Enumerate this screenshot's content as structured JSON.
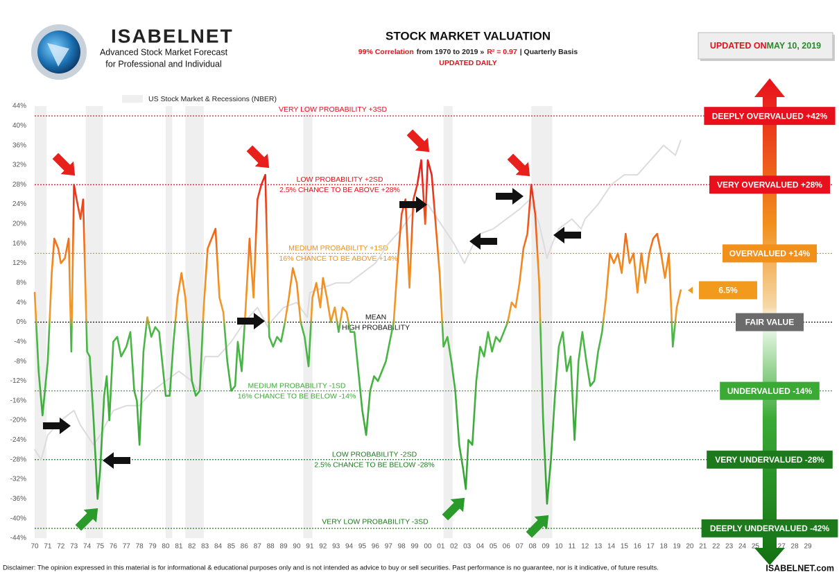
{
  "header": {
    "brand": "ISABELNET",
    "tagline_1": "Advanced Stock Market Forecast",
    "tagline_2": "for Professional and Individual",
    "updated_prefix": "UPDATED ON",
    "updated_date": "MAY 10, 2019"
  },
  "footer": {
    "disclaimer": "Disclaimer: The opinion expressed in this material is for informational & educational purposes only and is not intended as advice to buy or sell securities. Past performance is no guarantee, nor is it indicative, of future results.",
    "site": "ISABELNET.com"
  },
  "chart_data": {
    "type": "line",
    "title": "STOCK MARKET VALUATION",
    "subtitle": [
      {
        "text": "99% Correlation",
        "color": "#e8101c"
      },
      {
        "text": "from 1970 to 2019 »",
        "color": "#222222"
      },
      {
        "text": "R² = 0.97",
        "color": "#e8101c"
      },
      {
        "text": "| Quarterly Basis",
        "color": "#222222"
      }
    ],
    "note": "UPDATED DAILY",
    "legend_label": "US Stock Market & Recessions (NBER)",
    "xlim": [
      1970,
      2029
    ],
    "ylim": [
      -44,
      44
    ],
    "xticks": [
      {
        "value": 1970,
        "label": "70"
      },
      {
        "value": 1971,
        "label": "71"
      },
      {
        "value": 1972,
        "label": "72"
      },
      {
        "value": 1973,
        "label": "73"
      },
      {
        "value": 1974,
        "label": "74"
      },
      {
        "value": 1975,
        "label": "75"
      },
      {
        "value": 1976,
        "label": "76"
      },
      {
        "value": 1977,
        "label": "77"
      },
      {
        "value": 1978,
        "label": "78"
      },
      {
        "value": 1979,
        "label": "79"
      },
      {
        "value": 1980,
        "label": "80"
      },
      {
        "value": 1981,
        "label": "81"
      },
      {
        "value": 1982,
        "label": "82"
      },
      {
        "value": 1983,
        "label": "83"
      },
      {
        "value": 1984,
        "label": "84"
      },
      {
        "value": 1985,
        "label": "85"
      },
      {
        "value": 1986,
        "label": "86"
      },
      {
        "value": 1987,
        "label": "87"
      },
      {
        "value": 1988,
        "label": "88"
      },
      {
        "value": 1989,
        "label": "89"
      },
      {
        "value": 1990,
        "label": "90"
      },
      {
        "value": 1991,
        "label": "91"
      },
      {
        "value": 1992,
        "label": "92"
      },
      {
        "value": 1993,
        "label": "93"
      },
      {
        "value": 1994,
        "label": "94"
      },
      {
        "value": 1995,
        "label": "95"
      },
      {
        "value": 1996,
        "label": "96"
      },
      {
        "value": 1997,
        "label": "97"
      },
      {
        "value": 1998,
        "label": "98"
      },
      {
        "value": 1999,
        "label": "99"
      },
      {
        "value": 2000,
        "label": "00"
      },
      {
        "value": 2001,
        "label": "01"
      },
      {
        "value": 2002,
        "label": "02"
      },
      {
        "value": 2003,
        "label": "03"
      },
      {
        "value": 2004,
        "label": "04"
      },
      {
        "value": 2005,
        "label": "05"
      },
      {
        "value": 2006,
        "label": "06"
      },
      {
        "value": 2007,
        "label": "07"
      },
      {
        "value": 2008,
        "label": "08"
      },
      {
        "value": 2009,
        "label": "09"
      },
      {
        "value": 2010,
        "label": "10"
      },
      {
        "value": 2011,
        "label": "11"
      },
      {
        "value": 2012,
        "label": "12"
      },
      {
        "value": 2013,
        "label": "13"
      },
      {
        "value": 2014,
        "label": "14"
      },
      {
        "value": 2015,
        "label": "15"
      },
      {
        "value": 2016,
        "label": "16"
      },
      {
        "value": 2017,
        "label": "17"
      },
      {
        "value": 2018,
        "label": "18"
      },
      {
        "value": 2019,
        "label": "19"
      },
      {
        "value": 2020,
        "label": "20"
      },
      {
        "value": 2021,
        "label": "21"
      },
      {
        "value": 2022,
        "label": "22"
      },
      {
        "value": 2023,
        "label": "23"
      },
      {
        "value": 2024,
        "label": "24"
      },
      {
        "value": 2025,
        "label": "25"
      },
      {
        "value": 2026,
        "label": "26"
      },
      {
        "value": 2027,
        "label": "27"
      },
      {
        "value": 2028,
        "label": "28"
      },
      {
        "value": 2029,
        "label": "29"
      }
    ],
    "yticks": [
      {
        "value": 44,
        "label": "44%"
      },
      {
        "value": 40,
        "label": "40%"
      },
      {
        "value": 36,
        "label": "36%"
      },
      {
        "value": 32,
        "label": "32%"
      },
      {
        "value": 28,
        "label": "28%"
      },
      {
        "value": 24,
        "label": "24%"
      },
      {
        "value": 20,
        "label": "20%"
      },
      {
        "value": 16,
        "label": "16%"
      },
      {
        "value": 12,
        "label": "12%"
      },
      {
        "value": 8,
        "label": "8%"
      },
      {
        "value": 4,
        "label": "4%"
      },
      {
        "value": 0,
        "label": "0%"
      },
      {
        "value": -4,
        "label": "-4%"
      },
      {
        "value": -8,
        "label": "-8%"
      },
      {
        "value": -12,
        "label": "-12%"
      },
      {
        "value": -16,
        "label": "-16%"
      },
      {
        "value": -20,
        "label": "-20%"
      },
      {
        "value": -24,
        "label": "-24%"
      },
      {
        "value": -28,
        "label": "-28%"
      },
      {
        "value": -32,
        "label": "-32%"
      },
      {
        "value": -36,
        "label": "-36%"
      },
      {
        "value": -40,
        "label": "-40%"
      },
      {
        "value": -44,
        "label": "-44%"
      }
    ],
    "recessions": [
      [
        1970,
        1970.9
      ],
      [
        1973.9,
        1975.2
      ],
      [
        1980,
        1980.5
      ],
      [
        1981.5,
        1982.9
      ],
      [
        1990.5,
        1991.2
      ],
      [
        2001.2,
        2001.9
      ],
      [
        2007.9,
        2009.5
      ]
    ],
    "recession_color": "#efefef",
    "color_scale": [
      [
        30,
        "#e6231c"
      ],
      [
        20,
        "#ee5a1c"
      ],
      [
        12,
        "#f2881c"
      ],
      [
        1,
        "#f29a2c"
      ],
      [
        -1,
        "#4cb848"
      ],
      [
        -44,
        "#2f9e2f"
      ]
    ],
    "series": [
      {
        "color": "#dcdcdc",
        "x": [
          1970,
          1970.5,
          1971,
          1972,
          1973,
          1973.5,
          1974.5,
          1975,
          1976,
          1977,
          1978,
          1979,
          1980,
          1981,
          1982,
          1982.5,
          1983,
          1984,
          1985,
          1986,
          1987,
          1987.8,
          1988,
          1989,
          1990,
          1990.8,
          1991,
          1992,
          1993,
          1994,
          1995,
          1996,
          1997,
          1998,
          1999,
          2000,
          2001,
          2002,
          2002.8,
          2003.5,
          2004,
          2005,
          2006,
          2007,
          2007.8,
          2008.5,
          2009.1,
          2009.5,
          2010,
          2011,
          2011.7,
          2012,
          2013,
          2014,
          2015,
          2016,
          2017,
          2018,
          2018.9,
          2019.3
        ],
        "values": [
          -26,
          -28,
          -23,
          -20,
          -18,
          -21,
          -25,
          -23,
          -18,
          -17,
          -17,
          -14,
          -12,
          -10,
          -12,
          -14,
          -7,
          -7,
          -4,
          0,
          3,
          -1,
          0,
          3,
          4,
          1,
          6,
          7,
          8,
          8,
          10,
          12,
          16,
          19,
          23,
          24,
          20,
          16,
          12,
          16,
          18,
          19,
          21,
          23,
          25,
          20,
          13,
          16,
          19,
          21,
          19,
          21,
          24,
          28,
          30,
          30,
          33,
          36,
          34,
          37
        ]
      },
      {
        "color": "#f29a2c",
        "x": [
          1970,
          1970.3,
          1970.6,
          1971,
          1971.3,
          1971.5,
          1971.8,
          1972,
          1972.3,
          1972.6,
          1972.8,
          1973,
          1973.2,
          1973.5,
          1973.7,
          1974,
          1974.2,
          1974.5,
          1974.8,
          1975,
          1975.3,
          1975.5,
          1975.7,
          1976,
          1976.3,
          1976.6,
          1977,
          1977.3,
          1977.6,
          1977.8,
          1978,
          1978.3,
          1978.6,
          1978.9,
          1979.2,
          1979.5,
          1980,
          1980.3,
          1980.6,
          1980.9,
          1981.2,
          1981.5,
          1981.8,
          1982,
          1982.3,
          1982.6,
          1982.9,
          1983.2,
          1983.5,
          1983.8,
          1984.1,
          1984.4,
          1984.7,
          1985,
          1985.3,
          1985.5,
          1985.8,
          1986.1,
          1986.4,
          1986.7,
          1987,
          1987.3,
          1987.6,
          1987.9,
          1988.2,
          1988.5,
          1988.8,
          1989.1,
          1989.4,
          1989.7,
          1990,
          1990.3,
          1990.6,
          1990.9,
          1991.2,
          1991.5,
          1991.8,
          1992,
          1992.3,
          1992.6,
          1992.9,
          1993.2,
          1993.5,
          1993.8,
          1994.1,
          1994.4,
          1994.7,
          1995,
          1995.3,
          1995.6,
          1995.9,
          1996.2,
          1996.5,
          1996.8,
          1997.1,
          1997.4,
          1997.7,
          1998,
          1998.3,
          1998.6,
          1998.9,
          1999.2,
          1999.5,
          1999.8,
          2000,
          2000.3,
          2000.6,
          2000.9,
          2001.2,
          2001.5,
          2001.8,
          2002.1,
          2002.4,
          2002.7,
          2002.9,
          2003.1,
          2003.4,
          2003.7,
          2004,
          2004.3,
          2004.6,
          2004.9,
          2005.2,
          2005.5,
          2005.8,
          2006.1,
          2006.4,
          2006.7,
          2007,
          2007.3,
          2007.6,
          2007.9,
          2008.2,
          2008.5,
          2008.8,
          2009.1,
          2009.4,
          2009.7,
          2010,
          2010.3,
          2010.6,
          2010.9,
          2011.2,
          2011.5,
          2011.8,
          2012.1,
          2012.4,
          2012.7,
          2013,
          2013.3,
          2013.6,
          2013.9,
          2014.2,
          2014.5,
          2014.8,
          2015.1,
          2015.4,
          2015.7,
          2016,
          2016.3,
          2016.6,
          2016.9,
          2017.2,
          2017.5,
          2017.8,
          2018.1,
          2018.4,
          2018.7,
          2019,
          2019.3
        ],
        "values": [
          6,
          -10,
          -19,
          -8,
          10,
          17,
          15,
          12,
          13,
          17,
          -6,
          28,
          25,
          21,
          25,
          -6,
          -7,
          -20,
          -36,
          -30,
          -15,
          -11,
          -20,
          -4,
          -3,
          -7,
          -5,
          -2,
          -14,
          -16,
          -25,
          -6,
          1,
          -3,
          -1,
          -2,
          -15,
          -15,
          -4,
          5,
          10,
          5,
          -5,
          -12,
          -15,
          -14,
          3,
          15,
          17,
          19,
          5,
          2,
          -8,
          -14,
          -13,
          -4,
          -10,
          3,
          17,
          5,
          25,
          28,
          30,
          -3,
          -5,
          -3,
          -4,
          0,
          5,
          11,
          8,
          0,
          -3,
          -9,
          5,
          8,
          3,
          9,
          5,
          0,
          3,
          -2,
          3,
          2,
          -2,
          -2,
          -10,
          -18,
          -23,
          -14,
          -11,
          -12,
          -10,
          -8,
          -4,
          0,
          12,
          22,
          25,
          7,
          25,
          28,
          33,
          20,
          33,
          30,
          20,
          10,
          -5,
          -3,
          -8,
          -14,
          -25,
          -30,
          -34,
          -24,
          -25,
          -12,
          -5,
          -7,
          -2,
          -6,
          -3,
          -4,
          -2,
          0,
          4,
          3,
          8,
          15,
          18,
          28,
          22,
          8,
          -20,
          -37,
          -28,
          -15,
          -5,
          -2,
          -10,
          -7,
          -24,
          -8,
          -2,
          -8,
          -13,
          -12,
          -6,
          -2,
          5,
          14,
          12,
          14,
          10,
          18,
          12,
          14,
          6,
          14,
          8,
          14,
          17,
          18,
          14,
          9,
          14,
          -5,
          3,
          6.5
        ]
      }
    ],
    "levels": [
      {
        "value": 42,
        "color": "#e8101c",
        "lines": [
          "VERY LOW PROBABILITY +3SD"
        ],
        "box": "DEEPLY OVERVALUED +42%"
      },
      {
        "value": 28,
        "color": "#e8101c",
        "lines": [
          "LOW PROBABILITY +2SD",
          "2.5% CHANCE TO BE ABOVE +28%"
        ],
        "box": "VERY OVERVALUED +28%"
      },
      {
        "value": 14,
        "color": "#f2901c",
        "lines": [
          "MEDIUM PROBABILITY +1SD",
          "16% CHANCE TO BE ABOVE +14%"
        ],
        "box": "OVERVALUED +14%"
      },
      {
        "value": 0,
        "color": "#111111",
        "lines": [
          "MEAN",
          "HIGH PROBABILITY"
        ],
        "box": "FAIR VALUE",
        "box_color": "#6b6b6b"
      },
      {
        "value": -14,
        "color": "#3aaa35",
        "lines": [
          "MEDIUM PROBABILITY -1SD",
          "16% CHANCE TO BE BELOW -14%"
        ],
        "box": "UNDERVALUED -14%"
      },
      {
        "value": -28,
        "color": "#1c7a1c",
        "lines": [
          "LOW PROBABILITY -2SD",
          "2.5% CHANCE TO BE BELOW -28%"
        ],
        "box": "VERY UNDERVALUED -28%"
      },
      {
        "value": -42,
        "color": "#1c7a1c",
        "lines": [
          "VERY LOW PROBABILITY -3SD"
        ],
        "box": "DEEPLY UNDERVALUED -42%"
      }
    ],
    "current": {
      "value": 6.5,
      "label": "6.5%",
      "color": "#f29a1c"
    }
  }
}
